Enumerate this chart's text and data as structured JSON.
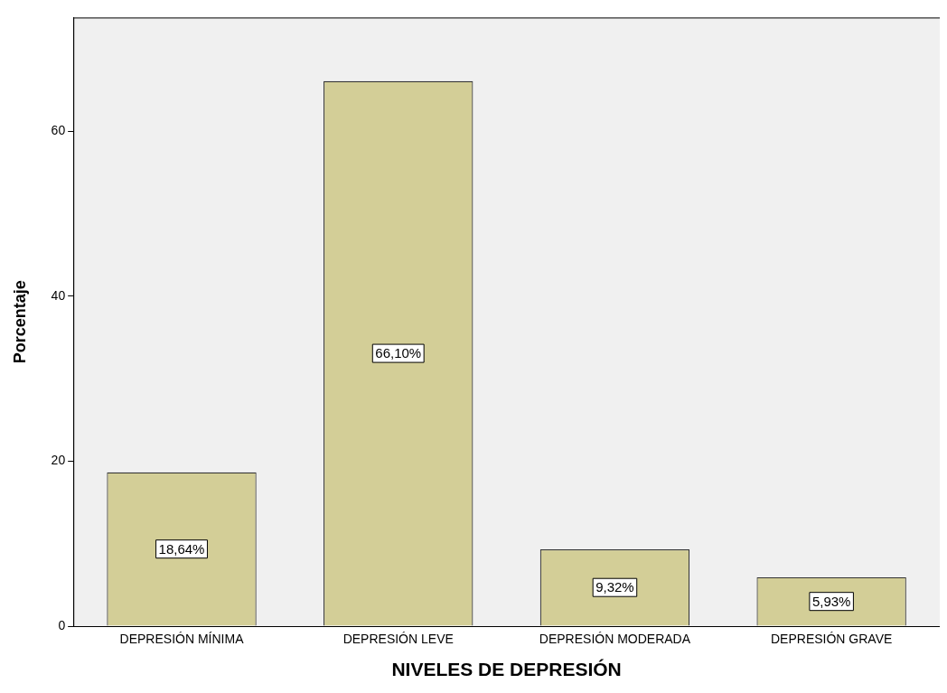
{
  "chart_data": {
    "type": "bar",
    "xlabel": "NIVELES DE DEPRESIÓN",
    "ylabel": "Porcentaje",
    "categories": [
      "DEPRESIÓN MÍNIMA",
      "DEPRESIÓN LEVE",
      "DEPRESIÓN MODERADA",
      "DEPRESIÓN GRAVE"
    ],
    "values": [
      18.64,
      66.1,
      9.32,
      5.93
    ],
    "value_labels": [
      "18,64%",
      "66,10%",
      "9,32%",
      "5,93%"
    ],
    "color": "#d3ce97",
    "ylim": [
      0,
      73.8
    ],
    "yticks": [
      0,
      20,
      40,
      60
    ],
    "grid": false,
    "legend": false
  }
}
